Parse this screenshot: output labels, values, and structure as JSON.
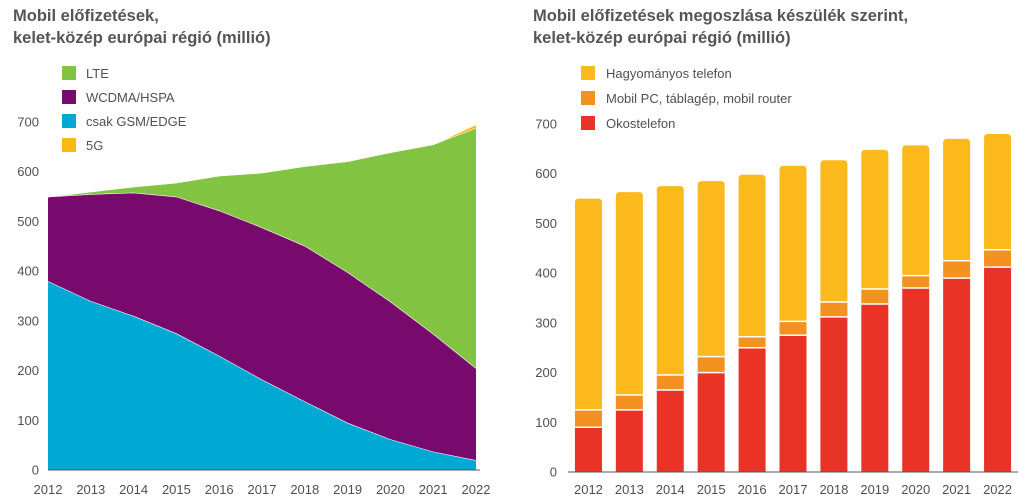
{
  "chart_data": [
    {
      "type": "area",
      "stacked": true,
      "title_lines": [
        "Mobil előfizetések,",
        "kelet-közép európai régió (millió)"
      ],
      "x": [
        "2012",
        "2013",
        "2014",
        "2015",
        "2016",
        "2017",
        "2018",
        "2019",
        "2020",
        "2021",
        "2022"
      ],
      "ylim": [
        0,
        700
      ],
      "yticks": [
        "0",
        "100",
        "200",
        "300",
        "400",
        "500",
        "600",
        "700"
      ],
      "legend_position": "top-left",
      "series": [
        {
          "name": "csak GSM/EDGE",
          "color": "#00a9d4",
          "values": [
            380,
            340,
            310,
            275,
            230,
            182,
            138,
            95,
            62,
            37,
            20
          ]
        },
        {
          "name": "WCDMA/HSPA",
          "color": "#770a6c",
          "values": [
            170,
            215,
            248,
            275,
            292,
            306,
            313,
            303,
            277,
            237,
            185
          ]
        },
        {
          "name": "LTE",
          "color": "#82c341",
          "values": [
            0,
            5,
            12,
            28,
            70,
            110,
            160,
            223,
            300,
            381,
            483
          ]
        },
        {
          "name": "5G",
          "color": "#f9b90f",
          "values": [
            0,
            0,
            0,
            0,
            0,
            0,
            0,
            0,
            0,
            0,
            7
          ]
        }
      ],
      "legend_order": [
        "LTE",
        "WCDMA/HSPA",
        "csak GSM/EDGE",
        "5G"
      ]
    },
    {
      "type": "bar",
      "stacked": true,
      "title_lines": [
        "Mobil előfizetések megoszlása készülék szerint,",
        "kelet-közép európai régió (millió)"
      ],
      "categories": [
        "2012",
        "2013",
        "2014",
        "2015",
        "2016",
        "2017",
        "2018",
        "2019",
        "2020",
        "2021",
        "2022"
      ],
      "ylim": [
        0,
        700
      ],
      "yticks": [
        "0",
        "100",
        "200",
        "300",
        "400",
        "500",
        "600",
        "700"
      ],
      "legend_position": "top-left",
      "series": [
        {
          "name": "Okostelefon",
          "color": "#ea3327",
          "values": [
            90,
            125,
            165,
            200,
            250,
            275,
            312,
            338,
            370,
            390,
            412
          ]
        },
        {
          "name": "Mobil PC, táblagép, mobil router",
          "color": "#f39121",
          "values": [
            35,
            30,
            30,
            32,
            22,
            28,
            30,
            30,
            25,
            35,
            35
          ]
        },
        {
          "name": "Hagyományos telefon",
          "color": "#fbb91b",
          "values": [
            425,
            408,
            380,
            353,
            326,
            313,
            285,
            280,
            262,
            245,
            233
          ]
        }
      ],
      "legend_order": [
        "Hagyományos telefon",
        "Mobil PC, táblagép, mobil router",
        "Okostelefon"
      ]
    }
  ]
}
